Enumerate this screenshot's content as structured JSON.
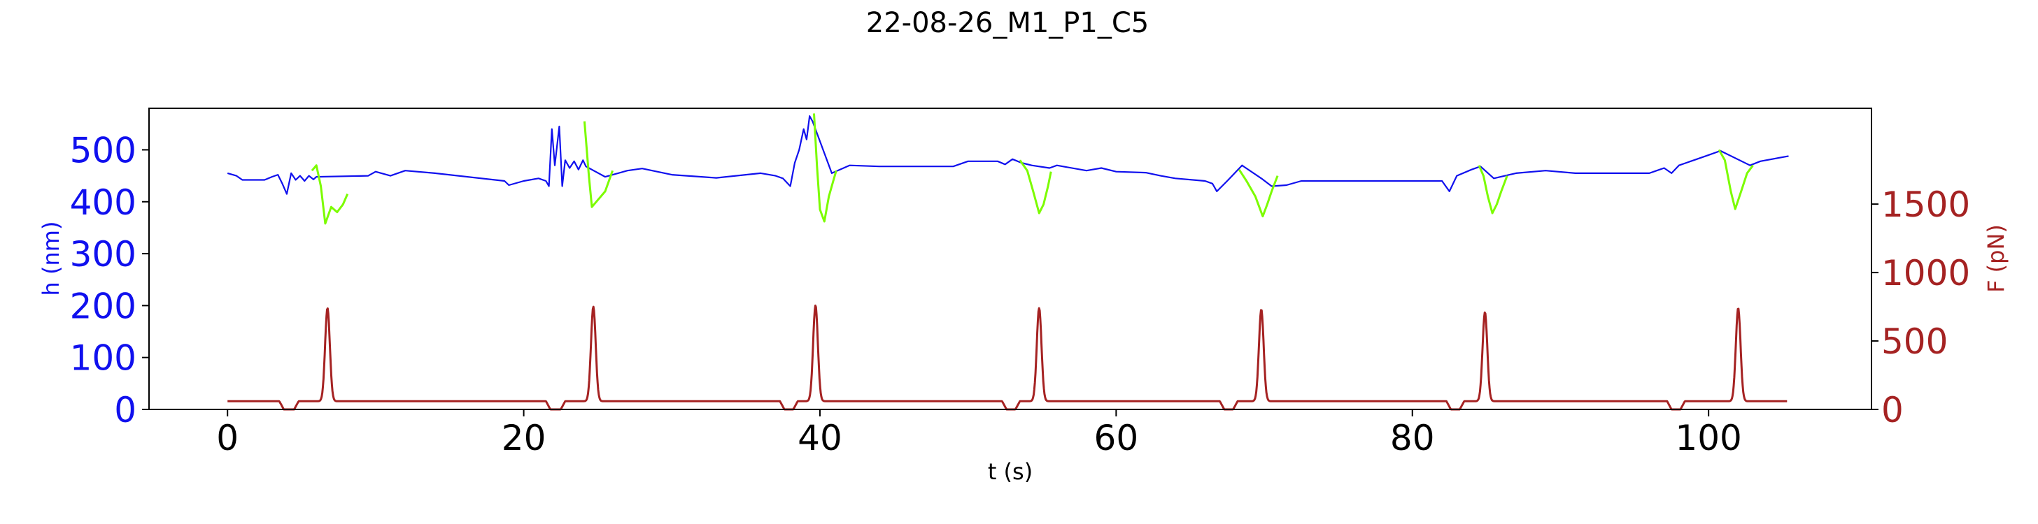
{
  "chart_data": {
    "type": "line",
    "title": "22-08-26_M1_P1_C5",
    "xlabel": "t (s)",
    "ylabel_left": "h (nm)",
    "ylabel_right": "F (pN)",
    "xlim": [
      -5.3,
      111
    ],
    "ylim_left": [
      0,
      580
    ],
    "ylim_right": [
      0,
      2200
    ],
    "x_ticks": [
      0,
      20,
      40,
      60,
      80,
      100
    ],
    "y_ticks_left": [
      0,
      100,
      200,
      300,
      400,
      500
    ],
    "y_ticks_right": [
      0,
      500,
      1000,
      1500
    ],
    "grid": false,
    "colors": {
      "height": "#1010ee",
      "height_highlight": "#7cfc00",
      "force": "#a52222",
      "left_axis": "#1010ee",
      "right_axis": "#a52222"
    },
    "series": [
      {
        "axis": "left",
        "role": "height",
        "points": [
          [
            0,
            455
          ],
          [
            0.6,
            450
          ],
          [
            1.0,
            442
          ],
          [
            2.5,
            442
          ],
          [
            3.0,
            448
          ],
          [
            3.4,
            452
          ],
          [
            3.7,
            435
          ],
          [
            4.0,
            415
          ],
          [
            4.3,
            455
          ],
          [
            4.6,
            442
          ],
          [
            4.9,
            450
          ],
          [
            5.2,
            440
          ],
          [
            5.5,
            450
          ],
          [
            5.8,
            443
          ],
          [
            6.0,
            448
          ],
          [
            9.5,
            450
          ],
          [
            10.0,
            458
          ],
          [
            11.0,
            450
          ],
          [
            12.0,
            460
          ],
          [
            14.0,
            455
          ],
          [
            18.7,
            440
          ],
          [
            19.0,
            432
          ],
          [
            20.0,
            440
          ],
          [
            21.0,
            445
          ],
          [
            21.5,
            440
          ],
          [
            21.7,
            430
          ],
          [
            21.9,
            540
          ],
          [
            22.1,
            470
          ],
          [
            22.4,
            545
          ],
          [
            22.6,
            430
          ],
          [
            22.8,
            480
          ],
          [
            23.1,
            465
          ],
          [
            23.4,
            478
          ],
          [
            23.7,
            462
          ],
          [
            24.0,
            480
          ],
          [
            24.2,
            468
          ],
          [
            25.5,
            448
          ],
          [
            27.0,
            460
          ],
          [
            28.0,
            464
          ],
          [
            30.0,
            452
          ],
          [
            33.0,
            446
          ],
          [
            36.0,
            455
          ],
          [
            37.0,
            450
          ],
          [
            37.5,
            445
          ],
          [
            38.0,
            430
          ],
          [
            38.3,
            475
          ],
          [
            38.6,
            500
          ],
          [
            38.9,
            540
          ],
          [
            39.1,
            520
          ],
          [
            39.3,
            565
          ],
          [
            39.5,
            555
          ],
          [
            40.8,
            455
          ],
          [
            42.0,
            470
          ],
          [
            44.0,
            468
          ],
          [
            46.0,
            468
          ],
          [
            49.0,
            468
          ],
          [
            50.0,
            478
          ],
          [
            52.0,
            478
          ],
          [
            52.5,
            472
          ],
          [
            53.0,
            482
          ],
          [
            53.6,
            475
          ],
          [
            54.3,
            470
          ],
          [
            55.5,
            465
          ],
          [
            56.0,
            470
          ],
          [
            58.0,
            460
          ],
          [
            59.0,
            465
          ],
          [
            60.0,
            458
          ],
          [
            62.0,
            456
          ],
          [
            63.0,
            450
          ],
          [
            64.0,
            445
          ],
          [
            66.0,
            440
          ],
          [
            66.5,
            435
          ],
          [
            66.8,
            420
          ],
          [
            67.5,
            440
          ],
          [
            68.0,
            455
          ],
          [
            68.5,
            470
          ],
          [
            69.8,
            445
          ],
          [
            70.5,
            430
          ],
          [
            71.5,
            432
          ],
          [
            72.5,
            440
          ],
          [
            75.0,
            440
          ],
          [
            82.0,
            440
          ],
          [
            82.5,
            420
          ],
          [
            83.0,
            450
          ],
          [
            84.0,
            462
          ],
          [
            84.6,
            468
          ],
          [
            85.5,
            445
          ],
          [
            87.0,
            455
          ],
          [
            89.0,
            460
          ],
          [
            91.0,
            455
          ],
          [
            96.0,
            455
          ],
          [
            96.5,
            460
          ],
          [
            97.0,
            465
          ],
          [
            97.5,
            455
          ],
          [
            98.0,
            470
          ],
          [
            99.0,
            480
          ],
          [
            100.0,
            490
          ],
          [
            100.8,
            498
          ],
          [
            102.8,
            470
          ],
          [
            103.5,
            478
          ],
          [
            105.4,
            488
          ]
        ]
      },
      {
        "axis": "left",
        "role": "height_highlight",
        "segments": [
          [
            [
              5.7,
              460
            ],
            [
              6.0,
              470
            ],
            [
              6.3,
              430
            ],
            [
              6.6,
              358
            ],
            [
              7.0,
              390
            ],
            [
              7.4,
              380
            ],
            [
              7.8,
              395
            ],
            [
              8.1,
              415
            ]
          ],
          [
            [
              24.1,
              555
            ],
            [
              24.4,
              450
            ],
            [
              24.6,
              390
            ],
            [
              24.9,
              400
            ],
            [
              25.2,
              410
            ],
            [
              25.5,
              420
            ],
            [
              26.0,
              460
            ]
          ],
          [
            [
              39.6,
              570
            ],
            [
              39.8,
              470
            ],
            [
              40.0,
              385
            ],
            [
              40.3,
              362
            ],
            [
              40.6,
              410
            ],
            [
              40.9,
              440
            ],
            [
              41.1,
              460
            ]
          ],
          [
            [
              53.5,
              480
            ],
            [
              54.0,
              460
            ],
            [
              54.4,
              420
            ],
            [
              54.8,
              378
            ],
            [
              55.1,
              395
            ],
            [
              55.4,
              430
            ],
            [
              55.6,
              458
            ]
          ],
          [
            [
              68.3,
              462
            ],
            [
              68.8,
              440
            ],
            [
              69.4,
              410
            ],
            [
              69.9,
              372
            ],
            [
              70.2,
              395
            ],
            [
              70.5,
              420
            ],
            [
              70.9,
              450
            ]
          ],
          [
            [
              84.5,
              470
            ],
            [
              84.8,
              450
            ],
            [
              85.1,
              410
            ],
            [
              85.4,
              378
            ],
            [
              85.7,
              395
            ],
            [
              86.0,
              420
            ],
            [
              86.4,
              450
            ]
          ],
          [
            [
              100.7,
              500
            ],
            [
              101.1,
              480
            ],
            [
              101.5,
              420
            ],
            [
              101.8,
              386
            ],
            [
              102.2,
              420
            ],
            [
              102.6,
              455
            ],
            [
              103.0,
              470
            ]
          ]
        ]
      },
      {
        "axis": "right",
        "role": "force",
        "baseline": 60,
        "dips": [
          [
            3.5,
            4.8
          ],
          [
            21.5,
            22.8
          ],
          [
            37.3,
            38.5
          ],
          [
            52.3,
            53.5
          ],
          [
            67.0,
            68.2
          ],
          [
            82.3,
            83.5
          ],
          [
            97.2,
            98.4
          ]
        ],
        "peaks": [
          [
            6.75,
            680
          ],
          [
            24.7,
            690
          ],
          [
            39.7,
            700
          ],
          [
            54.8,
            680
          ],
          [
            69.8,
            670
          ],
          [
            84.9,
            650
          ],
          [
            102.0,
            680
          ]
        ],
        "t_start": 0,
        "t_end": 105.3
      }
    ]
  }
}
